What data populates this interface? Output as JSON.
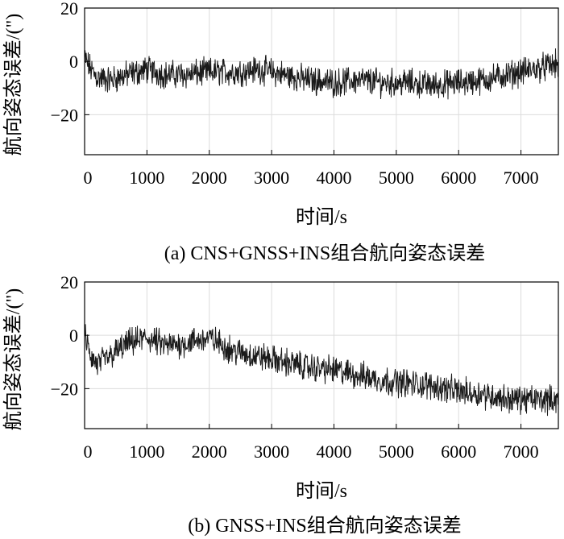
{
  "chart_data": [
    {
      "type": "line",
      "caption": "(a) CNS+GNSS+INS组合航向姿态误差",
      "xlabel": "时间/s",
      "ylabel": "航向姿态误差/(\")",
      "xlim": [
        0,
        7600
      ],
      "ylim": [
        -35,
        20
      ],
      "xticks": [
        0,
        1000,
        2000,
        3000,
        4000,
        5000,
        6000,
        7000
      ],
      "yticks": [
        20,
        0,
        -20
      ],
      "ytick_labels": [
        "20",
        "0",
        "−20"
      ],
      "grid": true,
      "series_color": "#1a1a1a",
      "noise_amplitude": 4,
      "series": [
        {
          "x": [
            0,
            100,
            200,
            400,
            700,
            1000,
            1300,
            1600,
            2000,
            2400,
            2800,
            3200,
            3600,
            4000,
            4400,
            4800,
            5200,
            5600,
            6000,
            6400,
            6800,
            7200,
            7600
          ],
          "values": [
            1,
            -3,
            -6,
            -7,
            -5,
            -3,
            -5,
            -5,
            -4,
            -4,
            -3,
            -5,
            -7,
            -8,
            -7,
            -8,
            -8,
            -9,
            -8,
            -7,
            -5,
            -3,
            -1
          ]
        }
      ]
    },
    {
      "type": "line",
      "caption": "(b) GNSS+INS组合航向姿态误差",
      "xlabel": "时间/s",
      "ylabel": "航向姿态误差/(\")",
      "xlim": [
        0,
        7600
      ],
      "ylim": [
        -35,
        20
      ],
      "xticks": [
        0,
        1000,
        2000,
        3000,
        4000,
        5000,
        6000,
        7000
      ],
      "yticks": [
        20,
        0,
        -20
      ],
      "ytick_labels": [
        "20",
        "0",
        "−20"
      ],
      "grid": true,
      "series_color": "#1a1a1a",
      "noise_amplitude": 4,
      "series": [
        {
          "x": [
            0,
            100,
            200,
            400,
            700,
            1000,
            1300,
            1600,
            2000,
            2400,
            2800,
            3200,
            3600,
            4000,
            4400,
            4800,
            5200,
            5600,
            6000,
            6400,
            6800,
            7200,
            7600
          ],
          "values": [
            0,
            -8,
            -11,
            -8,
            -3,
            -1,
            -4,
            -3,
            -1,
            -6,
            -8,
            -10,
            -12,
            -13,
            -15,
            -17,
            -18,
            -19,
            -21,
            -22,
            -24,
            -24,
            -24
          ]
        }
      ]
    }
  ]
}
